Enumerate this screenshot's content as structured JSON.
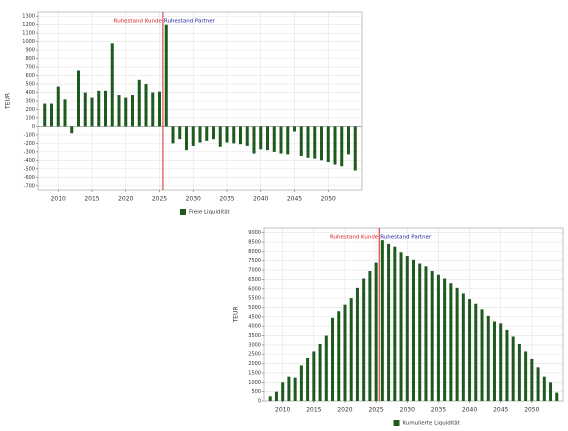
{
  "chart_data": [
    {
      "type": "bar",
      "ylabel": "TEUR",
      "legend": "bottom",
      "x": [
        2008,
        2009,
        2010,
        2011,
        2012,
        2013,
        2014,
        2015,
        2016,
        2017,
        2018,
        2019,
        2020,
        2021,
        2022,
        2023,
        2024,
        2025,
        2026,
        2027,
        2028,
        2029,
        2030,
        2031,
        2032,
        2033,
        2034,
        2035,
        2036,
        2037,
        2038,
        2039,
        2040,
        2041,
        2042,
        2043,
        2044,
        2045,
        2046,
        2047,
        2048,
        2049,
        2050,
        2051,
        2052,
        2053,
        2054
      ],
      "series": [
        {
          "name": "Freie Liquidität",
          "color": "#1e5a1e",
          "values": [
            270,
            270,
            470,
            320,
            -80,
            660,
            400,
            340,
            420,
            420,
            980,
            370,
            340,
            370,
            550,
            500,
            400,
            410,
            1200,
            -200,
            -150,
            -280,
            -230,
            -190,
            -170,
            -150,
            -240,
            -190,
            -200,
            -210,
            -230,
            -320,
            -270,
            -280,
            -300,
            -320,
            -330,
            -60,
            -350,
            -370,
            -380,
            -400,
            -420,
            -450,
            -470,
            -330,
            -520
          ]
        }
      ],
      "xlim": [
        2007,
        2055
      ],
      "xticks": [
        2010,
        2015,
        2020,
        2025,
        2030,
        2035,
        2040,
        2045,
        2050
      ],
      "ylim": [
        -750,
        1350
      ],
      "yticks": [
        -700,
        -600,
        -500,
        -400,
        -300,
        -200,
        -100,
        0,
        100,
        200,
        300,
        400,
        500,
        600,
        700,
        800,
        900,
        1000,
        1100,
        1200,
        1300
      ],
      "grid": true,
      "annotations": [
        {
          "text": "Ruhestand Kunde",
          "x": 2025.5,
          "color": "#d62020",
          "side": "left"
        },
        {
          "text": "Ruhestand Partner",
          "x": 2025.5,
          "color": "#2020a0",
          "side": "right"
        }
      ]
    },
    {
      "type": "bar",
      "ylabel": "TEUR",
      "legend": "bottom",
      "x": [
        2008,
        2009,
        2010,
        2011,
        2012,
        2013,
        2014,
        2015,
        2016,
        2017,
        2018,
        2019,
        2020,
        2021,
        2022,
        2023,
        2024,
        2025,
        2026,
        2027,
        2028,
        2029,
        2030,
        2031,
        2032,
        2033,
        2034,
        2035,
        2036,
        2037,
        2038,
        2039,
        2040,
        2041,
        2042,
        2043,
        2044,
        2045,
        2046,
        2047,
        2048,
        2049,
        2050,
        2051,
        2052,
        2053,
        2054
      ],
      "series": [
        {
          "name": "Kumulierte Liquidität",
          "color": "#1e5a1e",
          "values": [
            250,
            500,
            1000,
            1300,
            1250,
            1900,
            2300,
            2650,
            3050,
            3500,
            4450,
            4800,
            5150,
            5500,
            6050,
            6550,
            6950,
            7400,
            8600,
            8400,
            8250,
            7950,
            7750,
            7550,
            7350,
            7200,
            6950,
            6750,
            6550,
            6300,
            6050,
            5750,
            5450,
            5200,
            4900,
            4550,
            4250,
            4150,
            3800,
            3450,
            3050,
            2650,
            2250,
            1800,
            1300,
            1000,
            450
          ]
        }
      ],
      "xlim": [
        2007,
        2055
      ],
      "xticks": [
        2010,
        2015,
        2020,
        2025,
        2030,
        2035,
        2040,
        2045,
        2050
      ],
      "ylim": [
        0,
        9250
      ],
      "yticks": [
        0,
        500,
        1000,
        1500,
        2000,
        2500,
        3000,
        3500,
        4000,
        4500,
        5000,
        5500,
        6000,
        6500,
        7000,
        7500,
        8000,
        8500,
        9000
      ],
      "grid": true,
      "annotations": [
        {
          "text": "Ruhestand Kunde",
          "x": 2025.5,
          "color": "#d62020",
          "side": "left"
        },
        {
          "text": "Ruhestand Partner",
          "x": 2025.5,
          "color": "#2020a0",
          "side": "right"
        }
      ]
    }
  ]
}
